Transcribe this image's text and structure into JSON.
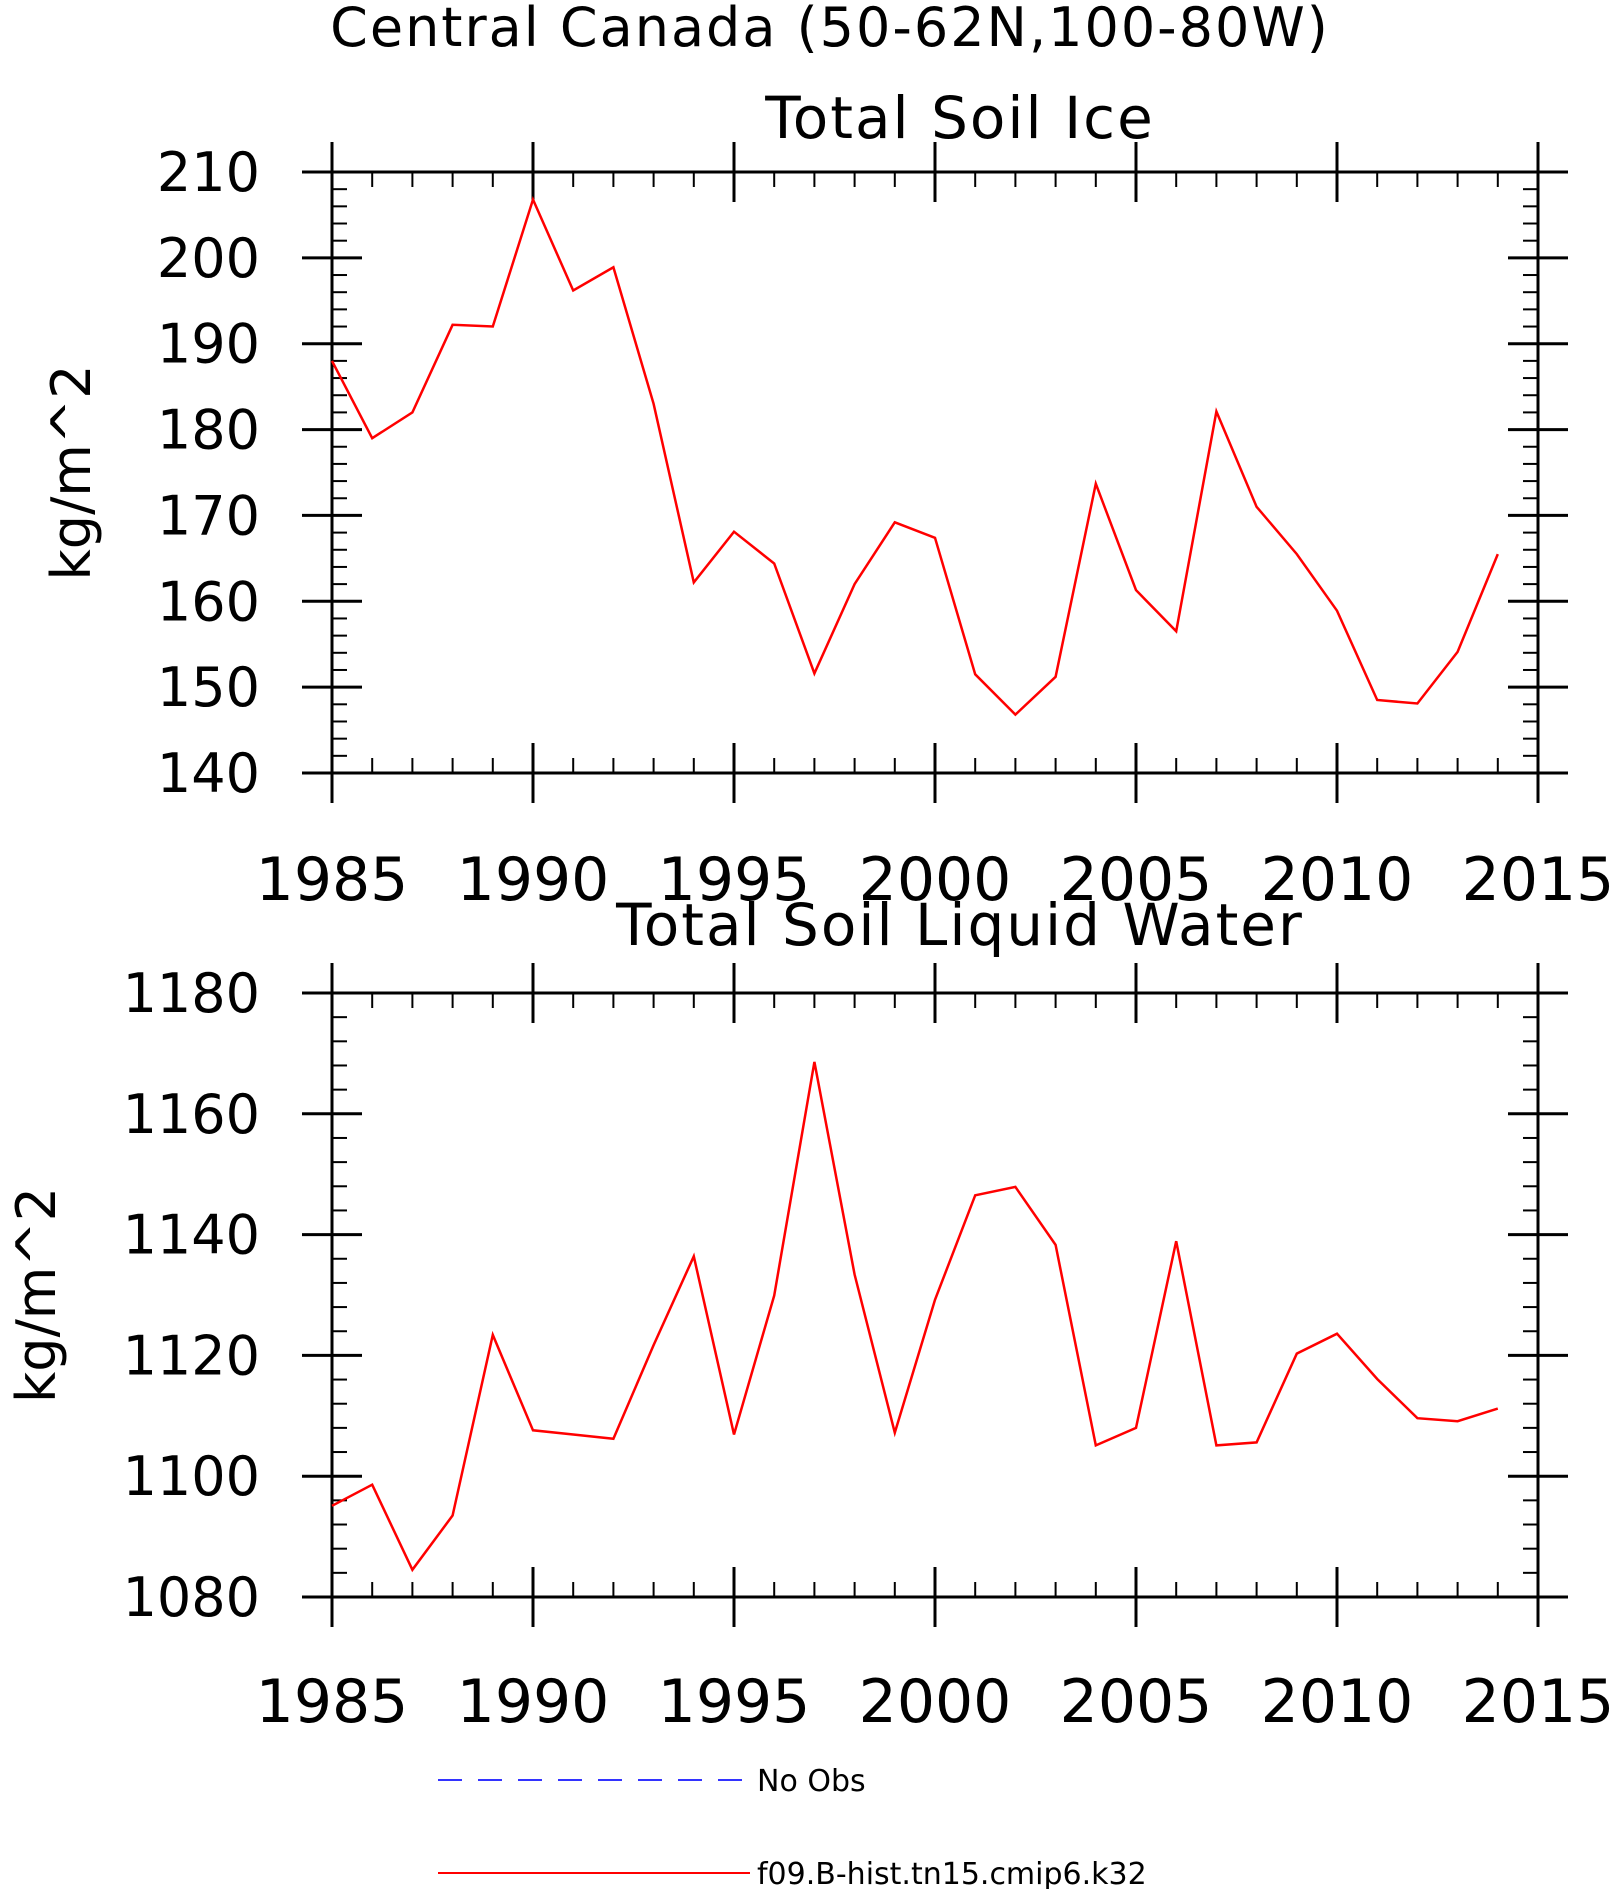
{
  "figure": {
    "title": "Central Canada (50-62N,100-80W)",
    "legend": [
      {
        "label": "No Obs",
        "color": "#3333ff",
        "dash": true
      },
      {
        "label": "f09.B-hist.tn15.cmip6.k32",
        "color": "#ff0000",
        "dash": false
      }
    ]
  },
  "chart_data": [
    {
      "type": "line",
      "title": "Total Soil Ice",
      "xlabel": "",
      "ylabel": "kg/m^2",
      "xlim": [
        1985,
        2015
      ],
      "ylim": [
        140,
        210
      ],
      "xticks": [
        1985,
        1990,
        1995,
        2000,
        2005,
        2010,
        2015
      ],
      "yticks": [
        140,
        150,
        160,
        170,
        180,
        190,
        200,
        210
      ],
      "grid": false,
      "series": [
        {
          "name": "f09.B-hist.tn15.cmip6.k32",
          "color": "#ff0000",
          "x": [
            1985,
            1986,
            1987,
            1988,
            1989,
            1990,
            1991,
            1992,
            1993,
            1994,
            1995,
            1996,
            1997,
            1998,
            1999,
            2000,
            2001,
            2002,
            2003,
            2004,
            2005,
            2006,
            2007,
            2008,
            2009,
            2010,
            2011,
            2012,
            2013,
            2014
          ],
          "y": [
            188.0,
            179.0,
            182.0,
            192.2,
            192.0,
            206.8,
            196.2,
            198.9,
            183.0,
            162.2,
            168.1,
            164.4,
            151.6,
            162.0,
            169.2,
            167.4,
            151.5,
            146.8,
            151.2,
            173.7,
            161.3,
            156.5,
            182.1,
            171.0,
            165.5,
            158.9,
            148.5,
            148.1,
            154.1,
            165.5
          ]
        }
      ]
    },
    {
      "type": "line",
      "title": "Total Soil Liquid Water",
      "xlabel": "",
      "ylabel": "kg/m^2",
      "xlim": [
        1985,
        2015
      ],
      "ylim": [
        1080,
        1180
      ],
      "xticks": [
        1985,
        1990,
        1995,
        2000,
        2005,
        2010,
        2015
      ],
      "yticks": [
        1080,
        1100,
        1120,
        1140,
        1160,
        1180
      ],
      "grid": false,
      "series": [
        {
          "name": "f09.B-hist.tn15.cmip6.k32",
          "color": "#ff0000",
          "x": [
            1985,
            1986,
            1987,
            1988,
            1989,
            1990,
            1991,
            1992,
            1993,
            1994,
            1995,
            1996,
            1997,
            1998,
            1999,
            2000,
            2001,
            2002,
            2003,
            2004,
            2005,
            2006,
            2007,
            2008,
            2009,
            2010,
            2011,
            2012,
            2013,
            2014
          ],
          "y": [
            1095.1,
            1098.6,
            1084.5,
            1093.5,
            1123.4,
            1107.6,
            1106.9,
            1106.2,
            1121.7,
            1136.4,
            1106.9,
            1129.9,
            1168.6,
            1133.4,
            1107.2,
            1129.2,
            1146.5,
            1147.9,
            1138.3,
            1105.1,
            1108.0,
            1138.9,
            1105.1,
            1105.6,
            1120.3,
            1123.6,
            1116.1,
            1109.6,
            1109.1,
            1111.2
          ]
        }
      ]
    }
  ]
}
